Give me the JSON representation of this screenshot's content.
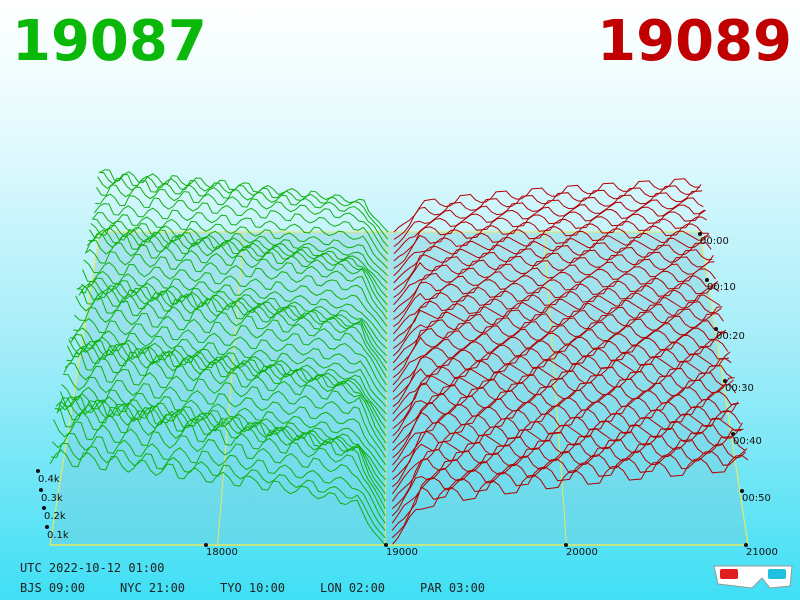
{
  "header": {
    "bid": "19087",
    "ask": "19089"
  },
  "price_axis": [
    "18000",
    "19000",
    "20000",
    "21000"
  ],
  "volume_axis": [
    "0.4k",
    "0.3k",
    "0.2k",
    "0.1k"
  ],
  "time_axis": [
    "00:00",
    "00:10",
    "00:20",
    "00:30",
    "00:40",
    "00:50"
  ],
  "footer": {
    "utc": "UTC 2022-10-12 01:00",
    "zones": [
      "BJS 09:00",
      "NYC 21:00",
      "TYO 10:00",
      "LON 02:00",
      "PAR 03:00"
    ]
  }
}
